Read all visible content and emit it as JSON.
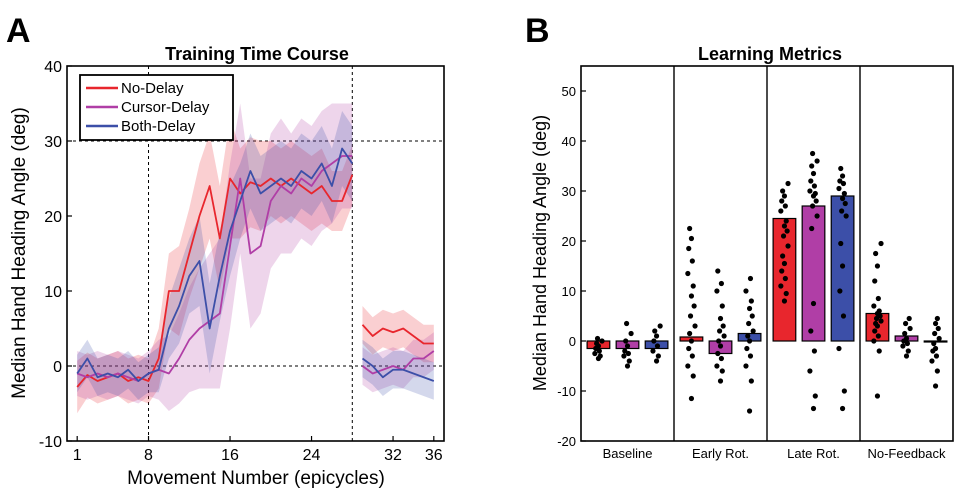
{
  "panel_a": {
    "letter": "A",
    "chart_data": {
      "type": "line",
      "title": "Training Time Course",
      "xlabel": "Movement Number (epicycles)",
      "ylabel": "Median Hand Heading Angle (deg)",
      "xlim": [
        0,
        37
      ],
      "ylim": [
        -10,
        40
      ],
      "xticks": [
        1,
        8,
        16,
        24,
        32,
        36
      ],
      "yticks": [
        -10,
        0,
        10,
        20,
        30,
        40
      ],
      "reference_lines": {
        "vertical": [
          8,
          28
        ],
        "horizontal": [
          0,
          30
        ]
      },
      "legend": {
        "location": "top-left",
        "entries": [
          "No-Delay",
          "Cursor-Delay",
          "Both-Delay"
        ]
      },
      "series": [
        {
          "name": "No-Delay",
          "color": "#e8262d",
          "segments": [
            {
              "x": [
                1,
                2,
                3,
                4,
                5,
                6,
                7,
                8,
                9,
                10,
                11,
                12,
                13,
                14,
                15,
                16,
                17,
                18,
                19,
                20,
                21,
                22,
                23,
                24,
                25,
                26,
                27,
                28
              ],
              "y": [
                -2.8,
                -1.2,
                -2,
                -1.5,
                -1,
                -2,
                -1.5,
                -2,
                1,
                10,
                10,
                15,
                20,
                24,
                17,
                25,
                23,
                24.5,
                24,
                25,
                24,
                25,
                24,
                23,
                24,
                22,
                22,
                25.5
              ],
              "band": [
                3.5,
                3,
                3,
                3,
                3,
                3,
                3,
                3,
                4,
                5,
                6,
                6,
                7,
                7,
                7,
                8,
                6,
                6,
                6,
                5,
                5,
                5,
                5,
                5,
                5,
                4,
                4,
                4
              ]
            },
            {
              "x": [
                29,
                30,
                31,
                32,
                33,
                34,
                35,
                36
              ],
              "y": [
                5.5,
                4,
                5,
                4.5,
                5,
                4,
                3,
                3
              ],
              "band": [
                2.5,
                2.5,
                2.5,
                2.5,
                2.5,
                2.5,
                2.5,
                2.5
              ]
            }
          ]
        },
        {
          "name": "Cursor-Delay",
          "color": "#b03ea6",
          "segments": [
            {
              "x": [
                1,
                2,
                3,
                4,
                5,
                6,
                7,
                8,
                9,
                10,
                11,
                12,
                13,
                14,
                15,
                16,
                17,
                18,
                19,
                20,
                21,
                22,
                23,
                24,
                25,
                26,
                27,
                28
              ],
              "y": [
                -1,
                -1.5,
                -1,
                -1.5,
                -1,
                -1.5,
                -2,
                -1,
                -0.5,
                -1,
                1,
                3.5,
                5,
                6,
                7,
                16,
                25,
                15,
                16,
                22,
                24,
                23,
                25,
                24,
                26,
                27,
                28,
                28
              ],
              "band": [
                3,
                3,
                3,
                3,
                3,
                3,
                3,
                3,
                4,
                5,
                6,
                7,
                8,
                9,
                10,
                11,
                10,
                10,
                9,
                9,
                9,
                8,
                8,
                8,
                8,
                8,
                7,
                7
              ]
            },
            {
              "x": [
                29,
                30,
                31,
                32,
                33,
                34,
                35,
                36
              ],
              "y": [
                0,
                -1,
                -0.5,
                0,
                -0.5,
                1,
                1,
                2
              ],
              "band": [
                2.5,
                2.5,
                2.5,
                2.5,
                2.5,
                2.5,
                2.5,
                2.5
              ]
            }
          ]
        },
        {
          "name": "Both-Delay",
          "color": "#3c4fa8",
          "segments": [
            {
              "x": [
                1,
                2,
                3,
                4,
                5,
                6,
                7,
                8,
                9,
                10,
                11,
                12,
                13,
                14,
                15,
                16,
                17,
                18,
                19,
                20,
                21,
                22,
                23,
                24,
                25,
                26,
                27,
                28
              ],
              "y": [
                -1,
                1,
                -1.5,
                -1,
                -1.5,
                -0.5,
                -2,
                -1,
                -0.5,
                5,
                8,
                12,
                14,
                5,
                12,
                18,
                22,
                26,
                23,
                24,
                25,
                24,
                26,
                25,
                27,
                24,
                29,
                27
              ],
              "band": [
                2.5,
                2.5,
                2.5,
                2.5,
                2.5,
                2.5,
                2.5,
                2.5,
                3,
                4,
                5,
                5,
                6,
                6,
                6,
                6,
                5,
                5,
                5,
                5,
                5,
                5,
                5,
                5,
                5,
                5,
                5,
                5
              ]
            },
            {
              "x": [
                29,
                30,
                31,
                32,
                33,
                34,
                35,
                36
              ],
              "y": [
                1,
                0,
                -1.5,
                -0.5,
                -0.5,
                -1,
                -1.5,
                -2
              ],
              "band": [
                2.5,
                2.5,
                2.5,
                2.5,
                2.5,
                2.5,
                2.5,
                2.5
              ]
            }
          ]
        }
      ]
    }
  },
  "panel_b": {
    "letter": "B",
    "chart_data": {
      "type": "bar",
      "title": "Learning Metrics",
      "ylabel": "Median Hand Heading Angle (deg)",
      "ylim": [
        -20,
        55
      ],
      "yticks": [
        -20,
        -10,
        0,
        10,
        20,
        30,
        40,
        50
      ],
      "categories": [
        "Baseline",
        "Early Rot.",
        "Late Rot.",
        "No-Feedback"
      ],
      "series": [
        {
          "name": "No-Delay",
          "color": "#e8262d",
          "values": [
            -1.5,
            0.8,
            24.5,
            5.5
          ],
          "points": [
            [
              -3.5,
              -3,
              -2.5,
              -2,
              -1.5,
              -1,
              -0.5,
              0,
              0.5
            ],
            [
              -11.5,
              -7,
              -5,
              -3,
              -1.5,
              0,
              1.5,
              3,
              5,
              7,
              9,
              11,
              13.5,
              16,
              18.5,
              20.5,
              22.5
            ],
            [
              8,
              9.5,
              11,
              12.5,
              14,
              15.5,
              17,
              19,
              21,
              22,
              23,
              24,
              26,
              27,
              28,
              29,
              30,
              31.5
            ],
            [
              -11,
              -2,
              0,
              1,
              2,
              3,
              3.5,
              4,
              4.5,
              5,
              5.5,
              6,
              7,
              8.5,
              12,
              15,
              17.5,
              19.5
            ]
          ]
        },
        {
          "name": "Cursor-Delay",
          "color": "#b03ea6",
          "values": [
            -1.5,
            -2.5,
            27,
            1
          ],
          "points": [
            [
              -5,
              -4,
              -3,
              -2.5,
              -2,
              -1,
              0,
              1.5,
              3.5
            ],
            [
              -8,
              -6,
              -5,
              -3.5,
              -2.5,
              -1,
              0,
              1,
              2,
              3,
              4.5,
              7,
              10,
              11.5,
              14
            ],
            [
              -13.5,
              -11,
              -6,
              -2,
              2,
              7.5,
              22.5,
              25,
              27,
              28,
              29,
              29.5,
              30,
              31,
              32,
              33.5,
              35,
              36,
              37.5
            ],
            [
              -3,
              -2,
              -1,
              -0.5,
              0,
              0.5,
              1.5,
              2.5,
              3.5,
              4.5
            ]
          ]
        },
        {
          "name": "Both-Delay",
          "color": "#3c4fa8",
          "values": [
            -1.5,
            1.5,
            29,
            0
          ],
          "points": [
            [
              -4,
              -3,
              -2,
              -1,
              0,
              1,
              2,
              3
            ],
            [
              -14,
              -8,
              -5,
              -3,
              -1.5,
              0,
              1,
              2,
              3.5,
              5,
              6.5,
              8,
              10,
              12.5
            ],
            [
              -13.5,
              -10,
              -1.5,
              5,
              10,
              15,
              19.5,
              25,
              26,
              27.5,
              28.5,
              29.5,
              30.5,
              31.5,
              32,
              33,
              34.5
            ],
            [
              -9,
              -6,
              -4,
              -3,
              -2,
              -1.5,
              -0.5,
              0.5,
              1.5,
              2.5,
              3.5,
              4.5
            ]
          ]
        }
      ]
    }
  }
}
